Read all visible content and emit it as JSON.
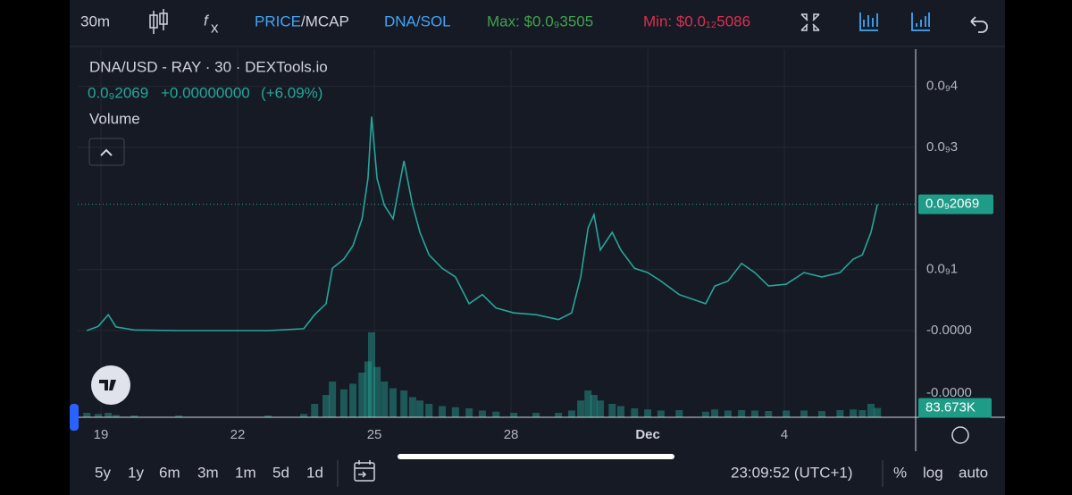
{
  "toolbar": {
    "interval": "30m",
    "price_label": "PRICE",
    "mcap_label": "/MCAP",
    "pair_switch": "DNA/SOL",
    "max_label": "Max: $0.0₉3505",
    "min_label": "Min: $0.0₁₂5086"
  },
  "legend": {
    "title": "DNA/USD - RAY · 30 · DEXTools.io",
    "last_price": "0.0₉2069",
    "change": "+0.00000000",
    "change_pct": "(+6.09%)",
    "volume_label": "Volume"
  },
  "chart_data": {
    "type": "line",
    "color": "#26a69a",
    "x": [
      -0.31,
      -0.06,
      0.16,
      0.33,
      0.73,
      1.71,
      3.67,
      4.45,
      4.69,
      4.94,
      5.08,
      5.33,
      5.53,
      5.73,
      5.86,
      5.94,
      6.06,
      6.22,
      6.41,
      6.65,
      6.84,
      7.0,
      7.2,
      7.49,
      7.78,
      8.08,
      8.37,
      8.67,
      9.06,
      9.55,
      10.04,
      10.33,
      10.53,
      10.69,
      10.82,
      10.96,
      11.22,
      11.41,
      11.71,
      12.0,
      12.29,
      12.69,
      13.27,
      13.47,
      13.76,
      14.06,
      14.35,
      14.65,
      15.04,
      15.43,
      15.82,
      16.22,
      16.51,
      16.71,
      16.9,
      17.04
    ],
    "series": [
      {
        "name": "DNA/USD",
        "color": "#26a69a",
        "values": [
          0,
          7e-12,
          2.6e-11,
          6e-12,
          1e-12,
          0,
          0,
          3e-12,
          2.6e-11,
          4.4e-11,
          1.02e-10,
          1.17e-10,
          1.39e-10,
          1.83e-10,
          2.49e-10,
          3.505e-10,
          2.49e-10,
          2.05e-10,
          1.83e-10,
          2.78e-10,
          2.05e-10,
          1.61e-10,
          1.24e-10,
          1.02e-10,
          8.8e-11,
          4.4e-11,
          5.9e-11,
          3.7e-11,
          2.9e-11,
          2.6e-11,
          1.8e-11,
          2.9e-11,
          8.8e-11,
          1.68e-10,
          1.9e-10,
          1.32e-10,
          1.61e-10,
          1.32e-10,
          1.02e-10,
          9.5e-11,
          8.1e-11,
          5.9e-11,
          4.4e-11,
          7.3e-11,
          8.1e-11,
          1.1e-10,
          9.5e-11,
          7.3e-11,
          7.6e-11,
          9.5e-11,
          8.8e-11,
          9.5e-11,
          1.17e-10,
          1.24e-10,
          1.61e-10,
          2.069e-10
        ]
      },
      {
        "name": "Volume",
        "color": "#26a69a",
        "axis": "y2",
        "values": [
          40000,
          30000,
          40000,
          20000,
          16000,
          16000,
          16000,
          30000,
          120000,
          200000,
          320000,
          250000,
          300000,
          400000,
          500000,
          760000,
          450000,
          320000,
          260000,
          240000,
          180000,
          150000,
          120000,
          100000,
          90000,
          80000,
          60000,
          50000,
          40000,
          40000,
          40000,
          60000,
          150000,
          240000,
          200000,
          150000,
          120000,
          100000,
          80000,
          70000,
          60000,
          64000,
          50000,
          70000,
          60000,
          64000,
          60000,
          56000,
          60000,
          60000,
          56000,
          64000,
          70000,
          64000,
          120000,
          83673
        ]
      }
    ],
    "xlim": [
      -0.51,
      17.88
    ],
    "xticks": [
      {
        "value": 0,
        "label": "19"
      },
      {
        "value": 3,
        "label": "22"
      },
      {
        "value": 6,
        "label": "25"
      },
      {
        "value": 9,
        "label": "28"
      },
      {
        "value": 12,
        "label": "Dec"
      },
      {
        "value": 15,
        "label": "4"
      }
    ],
    "ylim": [
      -1.42e-10,
      4.61e-10
    ],
    "yticks": [
      {
        "value": 4e-10,
        "label": "0.0₉4"
      },
      {
        "value": 3e-10,
        "label": "0.0₉3"
      },
      {
        "value": 1e-10,
        "label": "0.0₉1"
      },
      {
        "value": 0,
        "label": "-0.0000"
      }
    ],
    "y2lim": [
      0,
      1000000
    ],
    "y2_axis_label": "-0.0000",
    "current_price": {
      "value": 2.069e-10,
      "label": "0.0₉2069"
    },
    "current_volume": {
      "value": 83673,
      "label": "83.673K"
    },
    "grid": true
  },
  "footer": {
    "ranges": [
      "5y",
      "1y",
      "6m",
      "3m",
      "1m",
      "5d",
      "1d"
    ],
    "clock": "23:09:52 (UTC+1)",
    "percent": "%",
    "log": "log",
    "auto": "auto"
  }
}
